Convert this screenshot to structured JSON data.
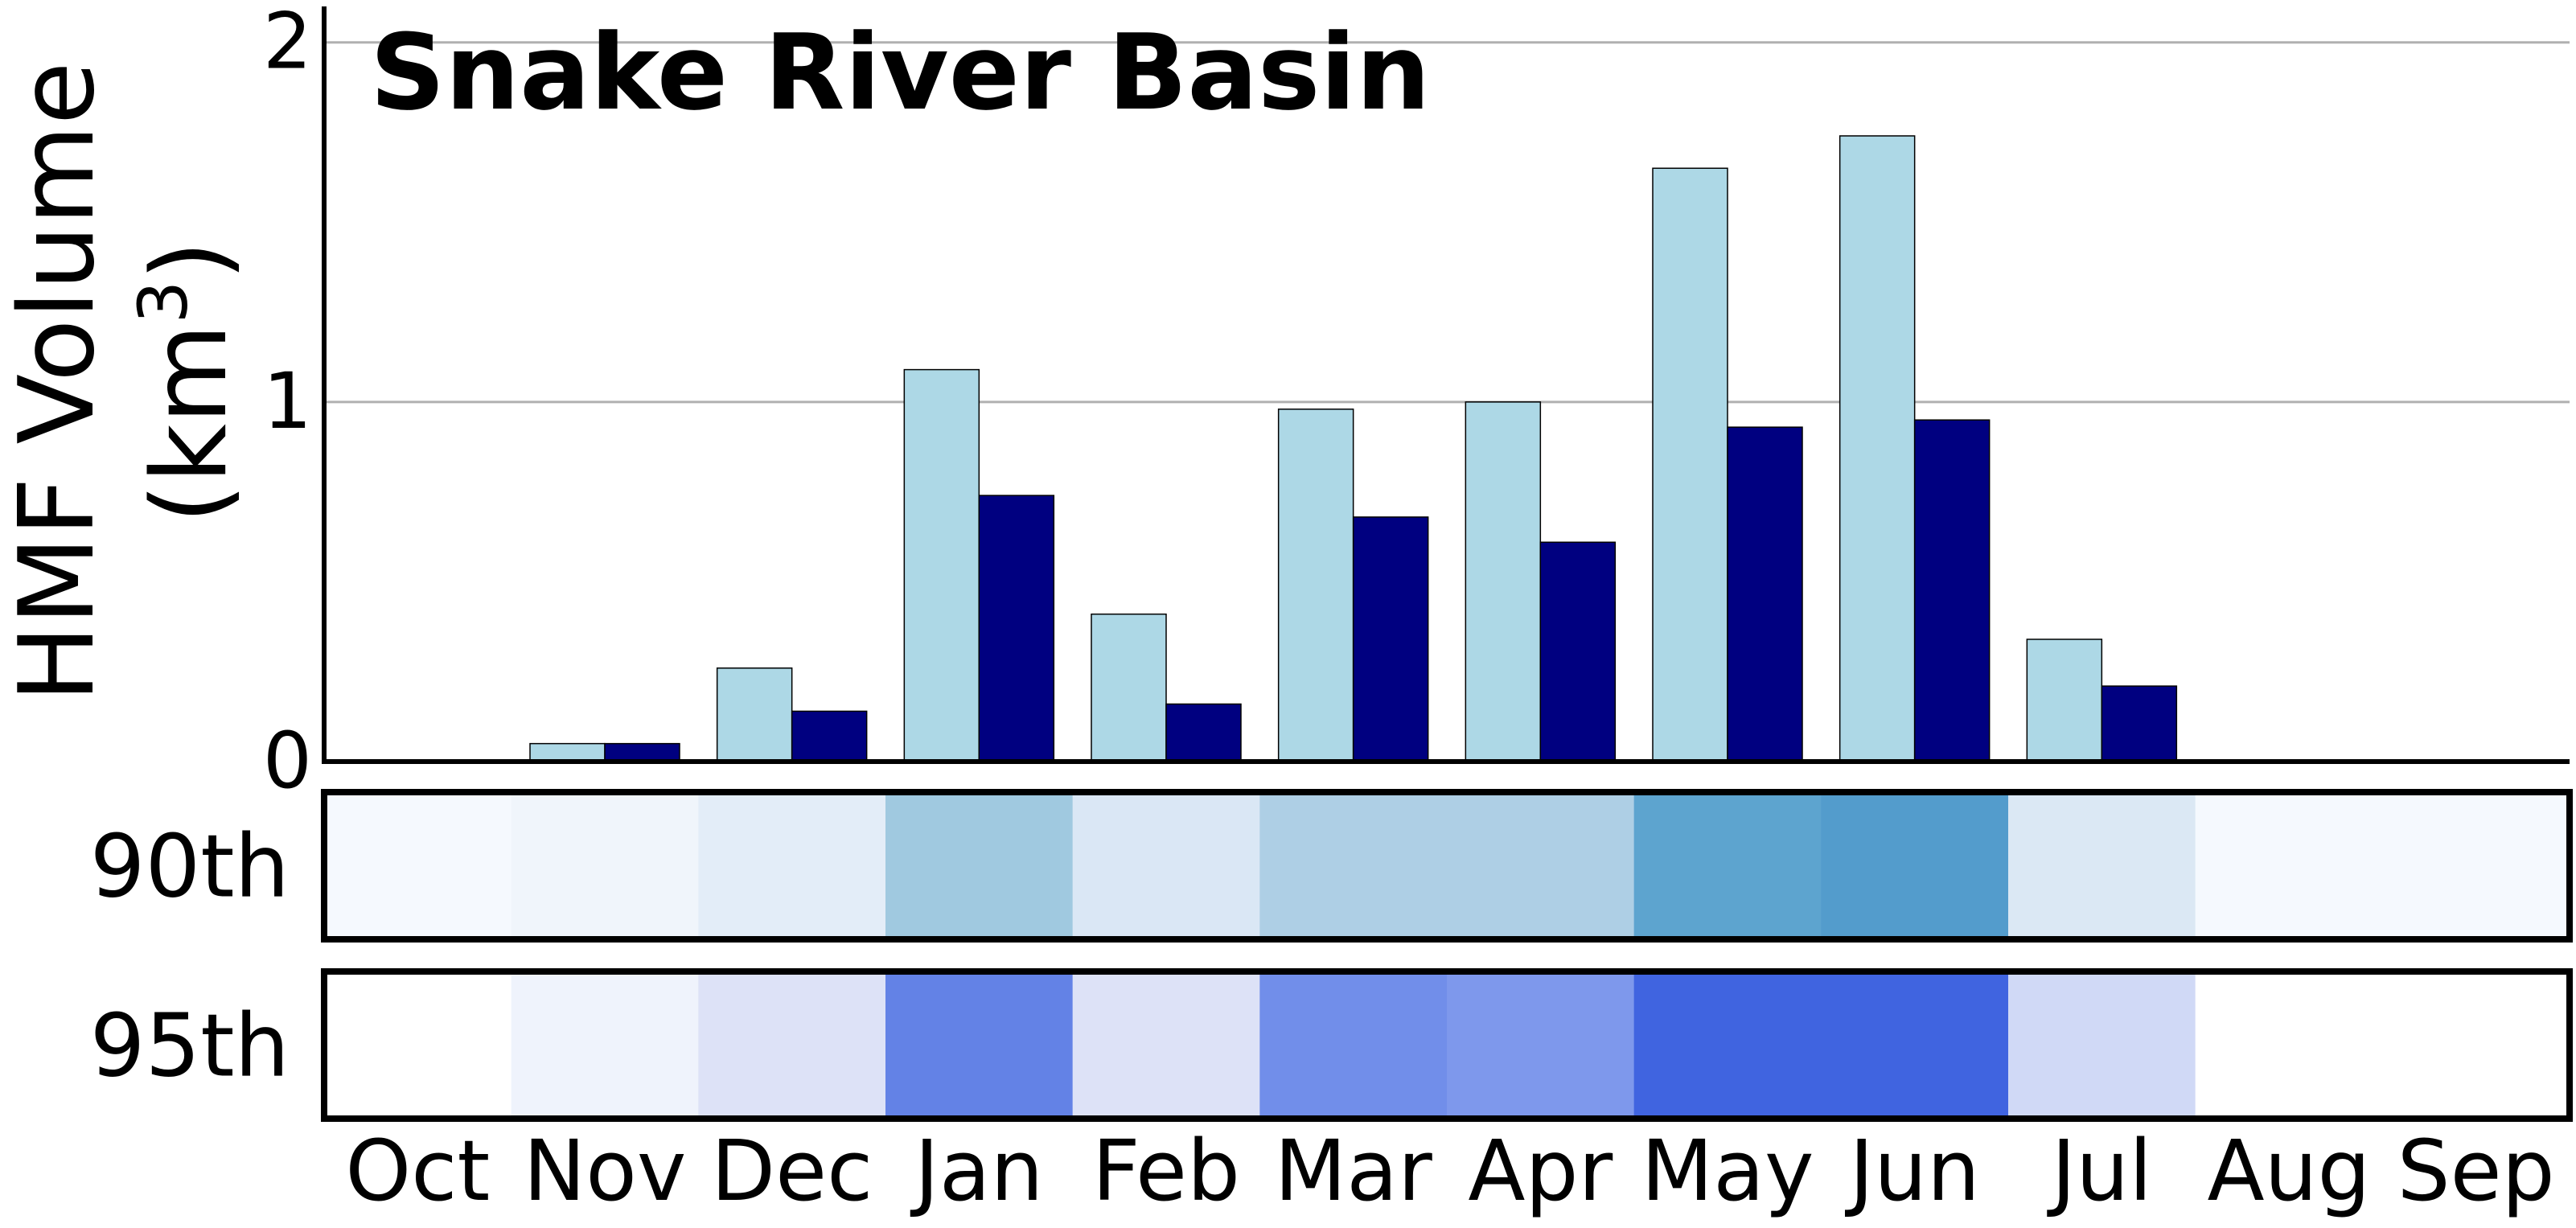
{
  "chart_data": {
    "type": "bar",
    "title": "Snake River Basin",
    "ylabel": "HMF Volume",
    "ylabel_unit": "(km",
    "ylabel_unit_sup": "3",
    "ylabel_unit_close": ")",
    "ylim": [
      0,
      2.1
    ],
    "yticks": [
      "0",
      "1",
      "2"
    ],
    "ytick_values": [
      0,
      1,
      2
    ],
    "grid": true,
    "categories": [
      "Oct",
      "Nov",
      "Dec",
      "Jan",
      "Feb",
      "Mar",
      "Apr",
      "May",
      "Jun",
      "Jul",
      "Aug",
      "Sep"
    ],
    "series": [
      {
        "color": "#add8e6",
        "values": [
          0,
          0.05,
          0.26,
          1.09,
          0.41,
          0.98,
          1.0,
          1.65,
          1.74,
          0.34,
          0,
          0
        ]
      },
      {
        "color": "#000080",
        "values": [
          0,
          0.05,
          0.14,
          0.74,
          0.16,
          0.68,
          0.61,
          0.93,
          0.95,
          0.21,
          0,
          0
        ]
      }
    ],
    "heatmap_rows": [
      {
        "label": "90th",
        "cell_colors": [
          "#f5f9fe",
          "#f0f5fb",
          "#e3edf8",
          "#a0c9e0",
          "#dae7f5",
          "#aecfe5",
          "#aecfe5",
          "#5da4cf",
          "#539ccc",
          "#dbe8f4",
          "#f5f9fe",
          "#f5f9fe"
        ]
      },
      {
        "label": "95th",
        "cell_colors": [
          "#ffffff",
          "#eff3fc",
          "#dde2f7",
          "#6382e6",
          "#dde2f7",
          "#718eea",
          "#7e98ec",
          "#4064e0",
          "#4064e0",
          "#d0d9f6",
          "#ffffff",
          "#ffffff"
        ]
      }
    ]
  }
}
